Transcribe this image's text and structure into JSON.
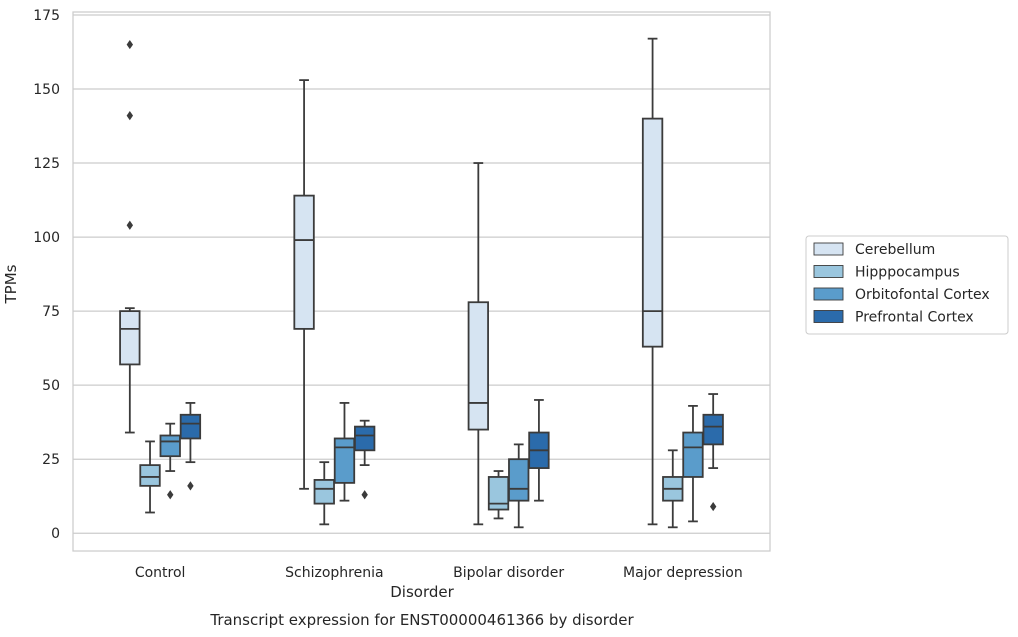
{
  "chart_data": {
    "type": "box",
    "title": "",
    "caption": "Transcript expression for ENST00000461366 by disorder",
    "xlabel": "Disorder",
    "ylabel": "TPMs",
    "ylim": [
      -6,
      176
    ],
    "yticks": [
      0,
      25,
      50,
      75,
      100,
      125,
      150,
      175
    ],
    "grid": "horizontal",
    "legend_position": "right",
    "categories": [
      "Control",
      "Schizophrenia",
      "Bipolar disorder",
      "Major depression"
    ],
    "series": [
      {
        "name": "Cerebellum",
        "color": "#d6e4f2",
        "boxes": [
          {
            "min": 34,
            "q1": 57,
            "median": 69,
            "q3": 75,
            "max": 76,
            "outliers": [
              104,
              141,
              165
            ]
          },
          {
            "min": 15,
            "q1": 69,
            "median": 99,
            "q3": 114,
            "max": 153,
            "outliers": []
          },
          {
            "min": 3,
            "q1": 35,
            "median": 44,
            "q3": 78,
            "max": 125,
            "outliers": []
          },
          {
            "min": 3,
            "q1": 63,
            "median": 75,
            "q3": 140,
            "max": 167,
            "outliers": []
          }
        ]
      },
      {
        "name": "Hipppocampus",
        "color": "#9ac6de",
        "boxes": [
          {
            "min": 7,
            "q1": 16,
            "median": 19,
            "q3": 23,
            "max": 31,
            "outliers": []
          },
          {
            "min": 3,
            "q1": 10,
            "median": 15,
            "q3": 18,
            "max": 24,
            "outliers": []
          },
          {
            "min": 5,
            "q1": 8,
            "median": 10,
            "q3": 19,
            "max": 21,
            "outliers": []
          },
          {
            "min": 2,
            "q1": 11,
            "median": 15,
            "q3": 19,
            "max": 28,
            "outliers": []
          }
        ]
      },
      {
        "name": "Orbitofontal Cortex",
        "color": "#5a9ccb",
        "boxes": [
          {
            "min": 21,
            "q1": 26,
            "median": 31,
            "q3": 33,
            "max": 37,
            "outliers": [
              13
            ]
          },
          {
            "min": 11,
            "q1": 17,
            "median": 29,
            "q3": 32,
            "max": 44,
            "outliers": []
          },
          {
            "min": 2,
            "q1": 11,
            "median": 15,
            "q3": 25,
            "max": 30,
            "outliers": []
          },
          {
            "min": 4,
            "q1": 19,
            "median": 29,
            "q3": 34,
            "max": 43,
            "outliers": []
          }
        ]
      },
      {
        "name": "Prefrontal Cortex",
        "color": "#2b6bab",
        "boxes": [
          {
            "min": 24,
            "q1": 32,
            "median": 37,
            "q3": 40,
            "max": 44,
            "outliers": [
              16
            ]
          },
          {
            "min": 23,
            "q1": 28,
            "median": 33,
            "q3": 36,
            "max": 38,
            "outliers": [
              13
            ]
          },
          {
            "min": 11,
            "q1": 22,
            "median": 28,
            "q3": 34,
            "max": 45,
            "outliers": []
          },
          {
            "min": 22,
            "q1": 30,
            "median": 36,
            "q3": 40,
            "max": 47,
            "outliers": [
              9
            ]
          }
        ]
      }
    ]
  }
}
